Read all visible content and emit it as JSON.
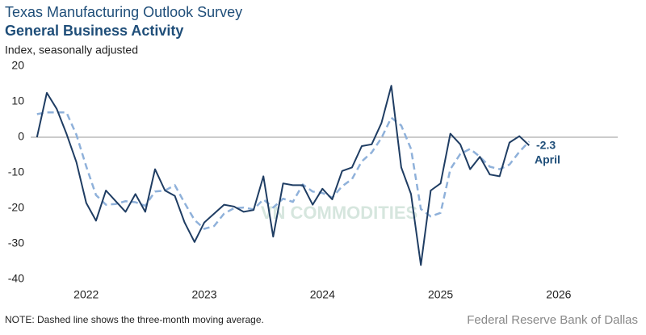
{
  "chart_data": {
    "type": "line",
    "title": "Texas Manufacturing Outlook Survey",
    "subtitle": "General Business Activity",
    "y_label": "Index, seasonally adjusted",
    "note": "NOTE: Dashed line shows the three-month moving average.",
    "source": "Federal Reserve Bank of Dallas",
    "watermark": "VN COMMODITIES",
    "annotations": [
      "-2.3",
      "April"
    ],
    "x": [
      2022.083,
      2022.167,
      2022.25,
      2022.333,
      2022.417,
      2022.5,
      2022.583,
      2022.667,
      2022.75,
      2022.833,
      2022.917,
      2023,
      2023.083,
      2023.167,
      2023.25,
      2023.333,
      2023.417,
      2023.5,
      2023.583,
      2023.667,
      2023.75,
      2023.833,
      2023.917,
      2024,
      2024.083,
      2024.167,
      2024.25,
      2024.333,
      2024.417,
      2024.5,
      2024.583,
      2024.667,
      2024.75,
      2024.833,
      2024.917,
      2025,
      2025.083,
      2025.167,
      2025.25,
      2025.333,
      2025.417,
      2025.5,
      2025.583,
      2025.667,
      2025.75,
      2025.833,
      2025.917,
      2026,
      2026.083,
      2026.167,
      2026.25
    ],
    "series": [
      {
        "name": "General Business Activity",
        "color": "#1f3d63",
        "dashed": false,
        "values": [
          0,
          12.5,
          8,
          1,
          -7,
          -18.5,
          -23.5,
          -15,
          -18,
          -21,
          -16,
          -21,
          -9,
          -15,
          -16.5,
          -24,
          -29.5,
          -24,
          -21.5,
          -19,
          -19.5,
          -21,
          -20.5,
          -11,
          -28,
          -13,
          -13.5,
          -13.5,
          -19,
          -14.5,
          -17.5,
          -9.5,
          -8.5,
          -2.5,
          -2,
          4,
          14.5,
          -8.5,
          -16,
          -36,
          -15,
          -13,
          1,
          -2,
          -9,
          -5.5,
          -10.5,
          -11,
          -1.5,
          0.3,
          -2.3
        ]
      },
      {
        "name": "Three-month moving average",
        "color": "#8fb1da",
        "dashed": true,
        "values": [
          6.5,
          7,
          7,
          7,
          0.7,
          -8.2,
          -16.3,
          -19,
          -18.8,
          -18,
          -18.3,
          -19.3,
          -15.3,
          -15,
          -13.5,
          -18.5,
          -23.3,
          -25.8,
          -25,
          -21.5,
          -20,
          -19.8,
          -20.3,
          -17.5,
          -19.8,
          -17.3,
          -18.2,
          -13.3,
          -15.3,
          -15.7,
          -17,
          -13.8,
          -11.8,
          -6.8,
          -4.3,
          -0.2,
          5.5,
          3.3,
          -3.3,
          -20.2,
          -22.3,
          -21.3,
          -9,
          -4.7,
          -3.3,
          -5.5,
          -8.3,
          -9,
          -7.7,
          -4.1,
          -1.2
        ]
      }
    ],
    "xlim": [
      2022.03,
      2027
    ],
    "xticks": [
      {
        "value": 2022.5,
        "label": "2022"
      },
      {
        "value": 2023.5,
        "label": "2023"
      },
      {
        "value": 2024.5,
        "label": "2024"
      },
      {
        "value": 2025.5,
        "label": "2025"
      },
      {
        "value": 2026.5,
        "label": "2026"
      }
    ],
    "ylim": [
      -40,
      20
    ],
    "yticks": [
      -40,
      -30,
      -20,
      -10,
      0,
      10,
      20
    ]
  }
}
